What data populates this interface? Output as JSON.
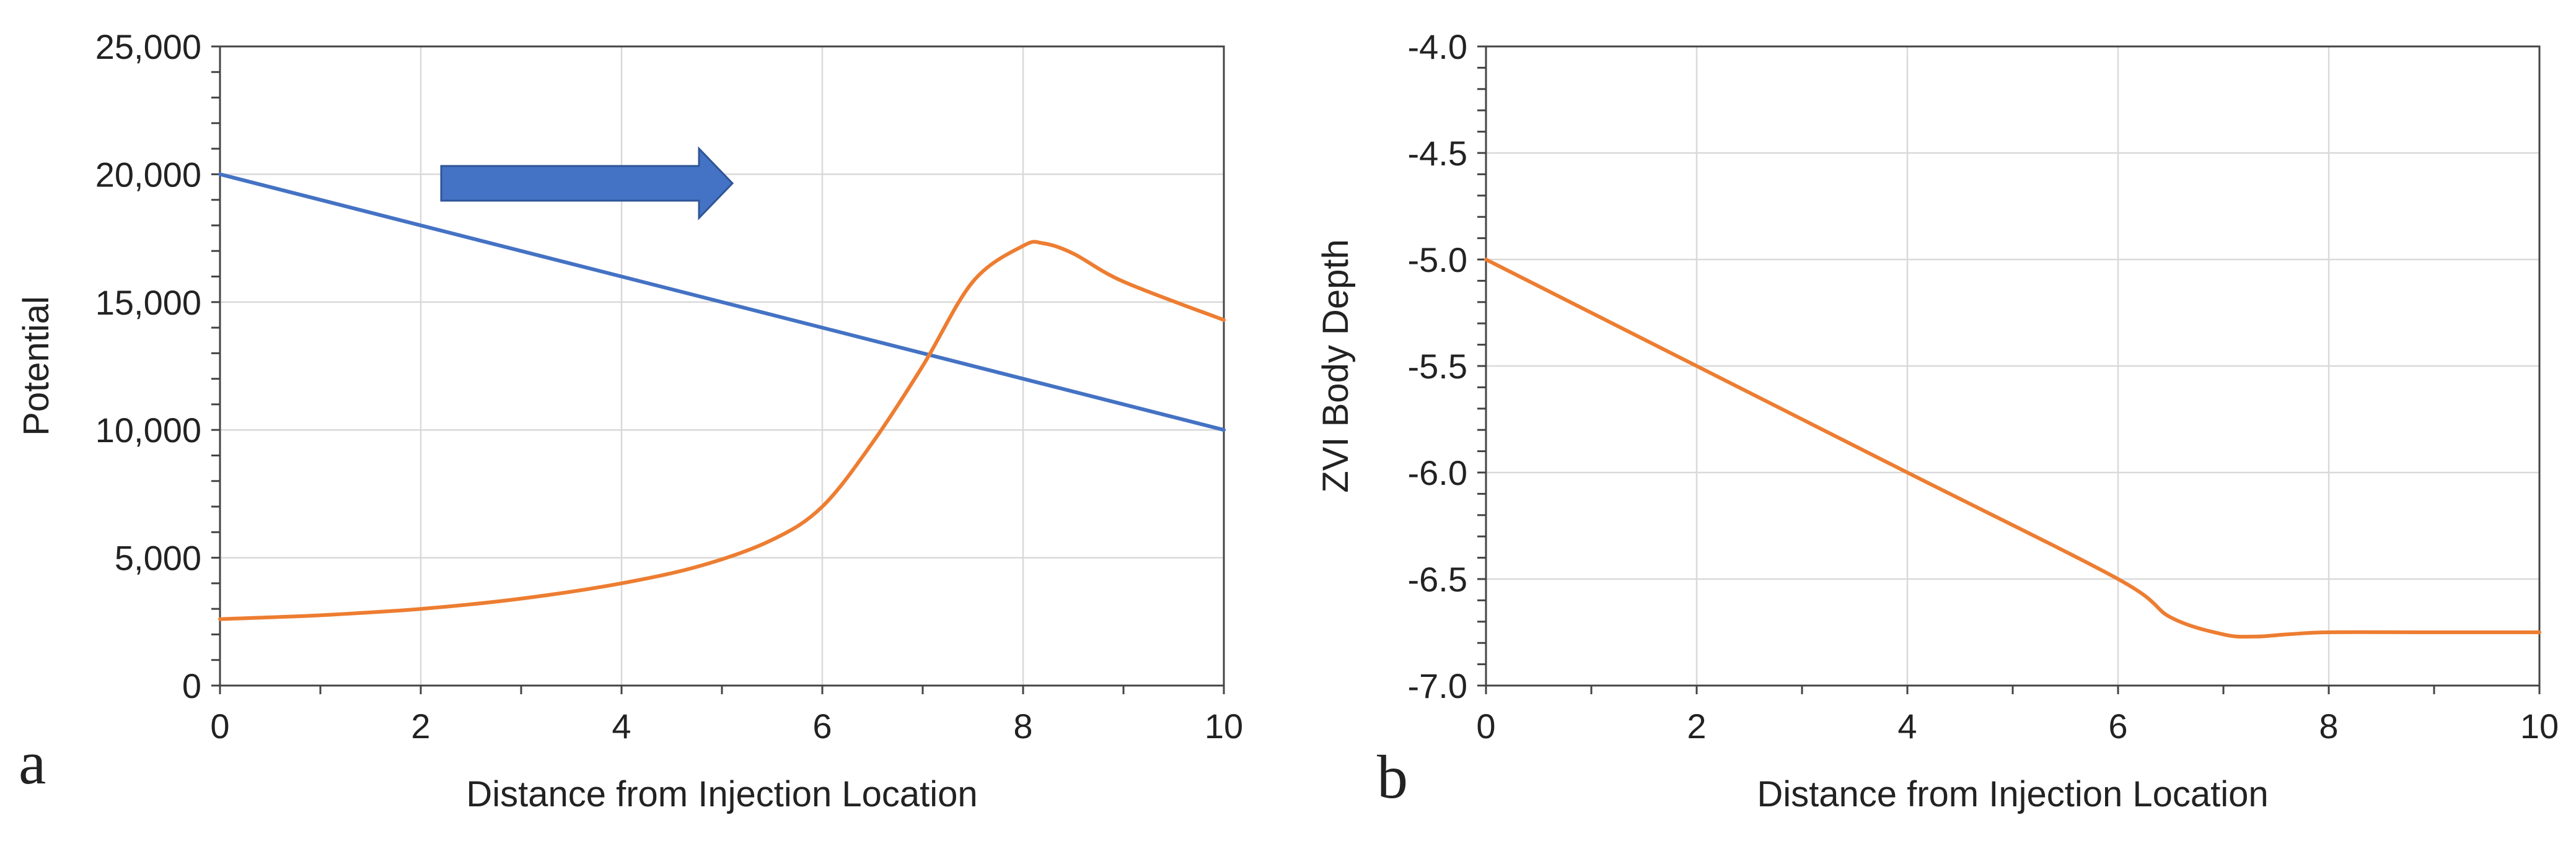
{
  "chart_data": [
    {
      "panel": "a",
      "type": "line",
      "title": "",
      "xlabel": "Distance from Injection Location",
      "ylabel": "Potential",
      "xlim": [
        0,
        10
      ],
      "ylim": [
        0,
        25000
      ],
      "xticks": [
        0,
        2,
        4,
        6,
        8,
        10
      ],
      "xtick_labels": [
        "0",
        "2",
        "4",
        "6",
        "8",
        "10"
      ],
      "yticks": [
        0,
        5000,
        10000,
        15000,
        20000,
        25000
      ],
      "ytick_labels": [
        "0",
        "5,000",
        "10,000",
        "15,000",
        "20,000",
        "25,000"
      ],
      "grid": true,
      "legend": "none",
      "annotation": "right-pointing arrow indicating flow direction",
      "series": [
        {
          "name": "blue line",
          "color": "#4472c4",
          "x": [
            0,
            10
          ],
          "y": [
            20000,
            10000
          ]
        },
        {
          "name": "orange curve",
          "color": "#ed7d31",
          "x": [
            0,
            1,
            2,
            3,
            4,
            4.8,
            5.5,
            6,
            6.5,
            7,
            7.5,
            8,
            8.2,
            8.5,
            9,
            10
          ],
          "y": [
            2600,
            2750,
            3000,
            3400,
            4000,
            4700,
            5700,
            7000,
            9500,
            12500,
            15800,
            17200,
            17300,
            16900,
            15800,
            14300
          ]
        }
      ]
    },
    {
      "panel": "b",
      "type": "line",
      "title": "",
      "xlabel": "Distance from Injection Location",
      "ylabel": "ZVI Body Depth",
      "xlim": [
        0,
        10
      ],
      "ylim": [
        -7.0,
        -4.0
      ],
      "xticks": [
        0,
        2,
        4,
        6,
        8,
        10
      ],
      "xtick_labels": [
        "0",
        "2",
        "4",
        "6",
        "8",
        "10"
      ],
      "yticks": [
        -4.0,
        -4.5,
        -5.0,
        -5.5,
        -6.0,
        -6.5,
        -7.0
      ],
      "ytick_labels": [
        "-4.0",
        "-4.5",
        "-5.0",
        "-5.5",
        "-6.0",
        "-6.5",
        "-7.0"
      ],
      "grid": true,
      "legend": "none",
      "series": [
        {
          "name": "orange curve",
          "color": "#ed7d31",
          "x": [
            0,
            2,
            4,
            6,
            6.5,
            7,
            7.3,
            7.6,
            8,
            9,
            10
          ],
          "y": [
            -5.0,
            -5.5,
            -6.0,
            -6.5,
            -6.68,
            -6.76,
            -6.77,
            -6.76,
            -6.75,
            -6.75,
            -6.75
          ]
        }
      ]
    }
  ]
}
